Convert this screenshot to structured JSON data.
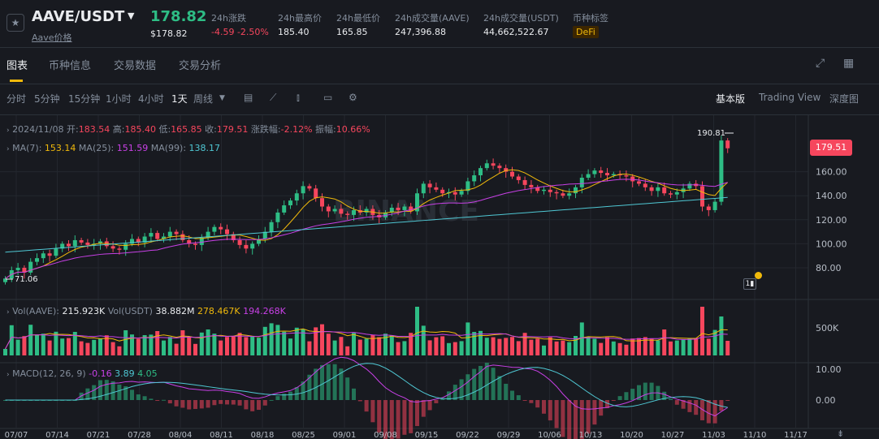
{
  "header": {
    "symbol": "AAVE/USDT",
    "sub_link": "Aave价格",
    "last_price": "178.82",
    "last_price_usd": "$178.82",
    "stats": [
      {
        "label": "24h涨跌",
        "value": "-4.59 -2.50%"
      },
      {
        "label": "24h最高价",
        "value": "185.40"
      },
      {
        "label": "24h最低价",
        "value": "165.85"
      },
      {
        "label": "24h成交量(AAVE)",
        "value": "247,396.88"
      },
      {
        "label": "24h成交量(USDT)",
        "value": "44,662,522.67"
      },
      {
        "label": "币种标签",
        "value": "DeFi"
      }
    ]
  },
  "tabs": [
    "图表",
    "币种信息",
    "交易数据",
    "交易分析"
  ],
  "intervals": [
    "分时",
    "5分钟",
    "15分钟",
    "1小时",
    "4小时",
    "1天",
    "周线"
  ],
  "views": [
    "基本版",
    "Trading View",
    "深度图"
  ],
  "candle_info": {
    "date": "2024/11/08",
    "open_label": "开:",
    "open": "183.54",
    "high_label": "高:",
    "high": "185.40",
    "low_label": "低:",
    "low": "165.85",
    "close_label": "收:",
    "close": "179.51",
    "change_label": "涨跌幅:",
    "change": "-2.12%",
    "amp_label": "振幅:",
    "amp": "10.66%"
  },
  "ma_info": {
    "ma7_label": "MA(7):",
    "ma7": "153.14",
    "ma25_label": "MA(25):",
    "ma25": "151.59",
    "ma99_label": "MA(99):",
    "ma99": "138.17"
  },
  "vol_info": {
    "vol_label": "Vol(AAVE):",
    "vol": "215.923K",
    "vol_usdt_label": "Vol(USDT)",
    "vol_usdt": "38.882M",
    "v1": "278.467K",
    "v2": "194.268K"
  },
  "macd_info": {
    "label": "MACD(12, 26, 9)",
    "v1": "-0.16",
    "v2": "3.89",
    "v3": "4.05"
  },
  "price_axis": [
    "160.00",
    "140.00",
    "120.00",
    "100.00",
    "80.00"
  ],
  "current_price_tag": "179.51",
  "high_marker": "190.81",
  "low_marker": "71.06",
  "vol_axis": "500K",
  "macd_axis": [
    "10.00",
    "0.00"
  ],
  "date_axis": [
    "07/07",
    "07/14",
    "07/21",
    "07/28",
    "08/04",
    "08/11",
    "08/18",
    "08/25",
    "09/01",
    "09/08",
    "09/15",
    "09/22",
    "09/29",
    "10/06",
    "10/13",
    "10/20",
    "10/27",
    "11/03",
    "11/10",
    "11/17"
  ],
  "watermark": "BINANCE",
  "colors": {
    "up": "#2ebd85",
    "down": "#f6465d",
    "accent": "#f0b90b",
    "ma7": "#f0b90b",
    "ma25": "#c840e6",
    "ma99": "#4fc7d3"
  },
  "chart_data": {
    "type": "candlestick",
    "closes": [
      71.06,
      78,
      80,
      76,
      85,
      88,
      92,
      90,
      96,
      100,
      98,
      103,
      101,
      99,
      100,
      102,
      98,
      96,
      95,
      100,
      104,
      101,
      106,
      109,
      104,
      106,
      110,
      108,
      103,
      100,
      99,
      105,
      110,
      114,
      112,
      108,
      103,
      99,
      96,
      100,
      104,
      110,
      118,
      126,
      132,
      136,
      142,
      148,
      146,
      138,
      131,
      127,
      129,
      125,
      124,
      128,
      126,
      129,
      124,
      122,
      126,
      130,
      128,
      131,
      127,
      142,
      150,
      147,
      145,
      142,
      143,
      141,
      144,
      152,
      157,
      163,
      167,
      165,
      163,
      160,
      156,
      153,
      149,
      147,
      144,
      145,
      143,
      142,
      140,
      142,
      147,
      155,
      158,
      161,
      159,
      157,
      158,
      157,
      156,
      152,
      150,
      147,
      144,
      147,
      142,
      141,
      143,
      146,
      150,
      148,
      131,
      128,
      135,
      186,
      179.51
    ]
  }
}
